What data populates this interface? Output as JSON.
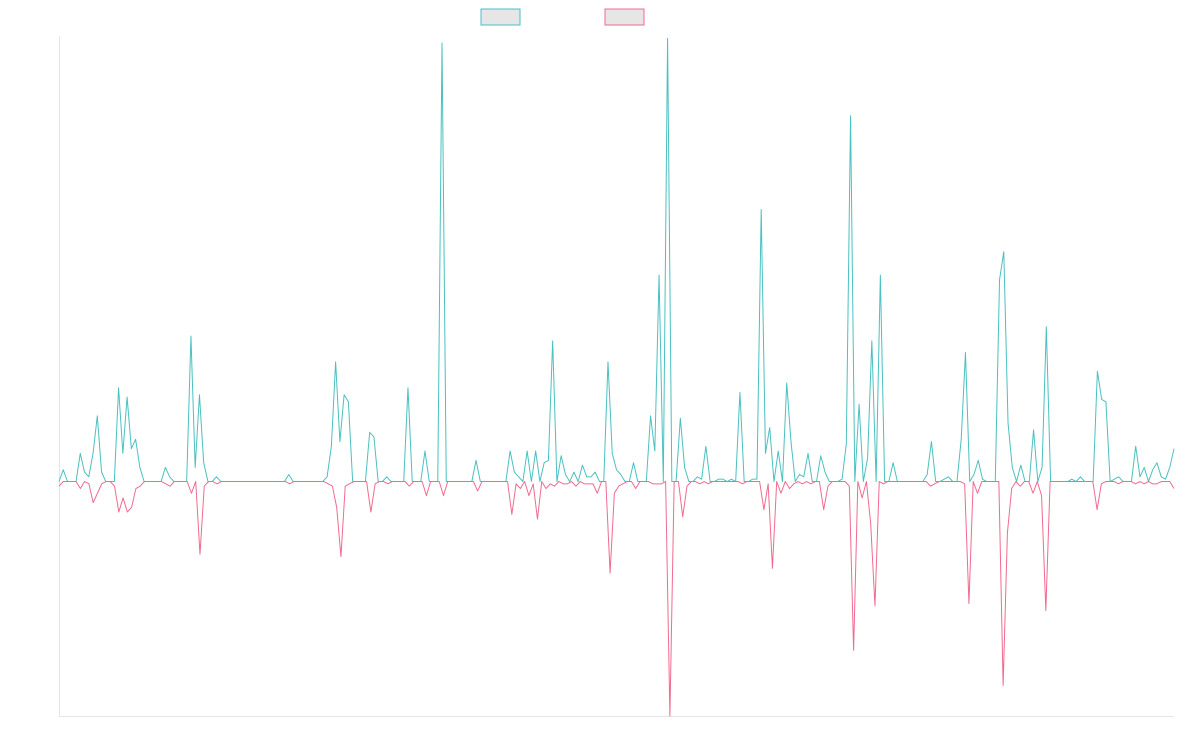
{
  "chart_data": {
    "type": "line",
    "title": "",
    "xlabel": "",
    "ylabel": "",
    "grid": false,
    "legend_position": "top-center",
    "ylim": [
      -1.0,
      1.9
    ],
    "series": [
      {
        "name": "",
        "color": "#4bc0c0",
        "fill": "#e6e6e6",
        "values": [
          0,
          0.05,
          0,
          0,
          0,
          0.12,
          0.04,
          0.02,
          0.12,
          0.28,
          0.04,
          0,
          0,
          0,
          0.4,
          0.12,
          0.36,
          0.14,
          0.18,
          0.06,
          0,
          0,
          0,
          0,
          0,
          0.06,
          0.02,
          0,
          0,
          0,
          0,
          0.62,
          0.06,
          0.37,
          0.08,
          0,
          0,
          0.02,
          0,
          0,
          0,
          0,
          0,
          0,
          0,
          0,
          0,
          0,
          0,
          0,
          0,
          0,
          0,
          0,
          0.03,
          0,
          0,
          0,
          0,
          0,
          0,
          0,
          0,
          0.02,
          0.15,
          0.51,
          0.17,
          0.37,
          0.34,
          0,
          0,
          0,
          0,
          0.21,
          0.19,
          0,
          0,
          0.02,
          0,
          0,
          0,
          0,
          0.4,
          0,
          0,
          0,
          0.13,
          0,
          0,
          0,
          1.87,
          0,
          0,
          0,
          0,
          0,
          0,
          0,
          0.09,
          0,
          0,
          0,
          0,
          0,
          0,
          0,
          0.13,
          0.04,
          0.02,
          0,
          0.13,
          0,
          0.13,
          0,
          0.08,
          0.09,
          0.6,
          0,
          0.11,
          0.03,
          0,
          0.04,
          0,
          0.07,
          0.02,
          0.02,
          0.04,
          0,
          0,
          0.51,
          0.12,
          0.05,
          0.03,
          0,
          0,
          0.08,
          0,
          0,
          0,
          0.28,
          0.13,
          0.88,
          0,
          1.89,
          0,
          0,
          0.27,
          0.06,
          0,
          0,
          0.02,
          0.01,
          0.15,
          0,
          0,
          0.01,
          0.01,
          0,
          0.01,
          0,
          0.38,
          0,
          0,
          0.01,
          0.01,
          1.16,
          0.12,
          0.23,
          0,
          0.13,
          0,
          0.42,
          0.17,
          0,
          0.03,
          0.02,
          0.12,
          0,
          0,
          0.11,
          0.04,
          0,
          0,
          0,
          0.01,
          0.16,
          1.56,
          0,
          0.33,
          0,
          0.1,
          0.6,
          0,
          0.88,
          0,
          0,
          0.08,
          0,
          0,
          0,
          0,
          0,
          0,
          0,
          0.03,
          0.17,
          0,
          0,
          0.01,
          0.02,
          0,
          0,
          0.18,
          0.55,
          0,
          0.03,
          0.09,
          0.01,
          0,
          0,
          0,
          0.86,
          0.98,
          0.25,
          0.06,
          0,
          0.07,
          0,
          0,
          0.22,
          0,
          0.06,
          0.66,
          0,
          0,
          0,
          0,
          0,
          0.01,
          0,
          0.02,
          0,
          0,
          0,
          0.47,
          0.35,
          0.34,
          0,
          0.01,
          0.02,
          0,
          0,
          0,
          0.15,
          0.02,
          0.06,
          0,
          0.05,
          0.08,
          0.02,
          0.01,
          0.06,
          0.14
        ]
      },
      {
        "name": "",
        "color": "#f06b8f",
        "fill": "#e6e6e6",
        "values": [
          -0.02,
          0,
          0,
          0,
          0,
          -0.03,
          0,
          -0.01,
          -0.09,
          -0.05,
          -0.01,
          0,
          0,
          -0.02,
          -0.13,
          -0.07,
          -0.13,
          -0.11,
          -0.03,
          -0.02,
          0,
          0,
          0,
          0,
          0,
          -0.01,
          -0.02,
          0,
          0,
          0,
          0,
          -0.05,
          0,
          -0.31,
          -0.02,
          0,
          0,
          -0.01,
          0,
          0,
          0,
          0,
          0,
          0,
          0,
          0,
          0,
          0,
          0,
          0,
          0,
          0,
          0,
          0,
          -0.01,
          0,
          0,
          0,
          0,
          0,
          0,
          0,
          0,
          -0.01,
          -0.02,
          -0.11,
          -0.32,
          -0.02,
          -0.01,
          0,
          0,
          0,
          0,
          -0.13,
          -0.01,
          0,
          0,
          -0.01,
          0,
          0,
          0,
          0,
          -0.02,
          0,
          0,
          0,
          -0.06,
          0,
          0,
          0,
          -0.06,
          0,
          0,
          0,
          0,
          0,
          0,
          0,
          -0.04,
          0,
          0,
          0,
          0,
          0,
          0,
          0,
          -0.14,
          -0.01,
          -0.03,
          0,
          -0.06,
          -0.01,
          -0.16,
          0,
          -0.03,
          -0.01,
          -0.02,
          0,
          -0.01,
          -0.01,
          0,
          -0.02,
          0,
          -0.01,
          -0.01,
          -0.01,
          -0.05,
          0,
          0,
          -0.39,
          -0.05,
          -0.02,
          -0.01,
          0,
          0,
          -0.03,
          0,
          0,
          0,
          -0.01,
          -0.01,
          -0.01,
          0,
          -1.0,
          0,
          0,
          -0.15,
          -0.02,
          0,
          0,
          -0.01,
          0,
          -0.01,
          0,
          0,
          0,
          0,
          0,
          0,
          0,
          -0.01,
          0,
          0,
          0,
          0,
          -0.12,
          -0.01,
          -0.37,
          0,
          -0.05,
          0,
          -0.03,
          -0.01,
          0,
          -0.01,
          0,
          -0.01,
          0,
          0,
          -0.12,
          -0.02,
          0,
          0,
          0,
          0,
          -0.02,
          -0.72,
          0,
          -0.07,
          0,
          -0.18,
          -0.53,
          0,
          -0.01,
          0,
          0,
          0,
          0,
          0,
          0,
          0,
          0,
          0,
          0,
          -0.02,
          -0.01,
          0,
          0,
          0,
          0,
          0,
          0,
          -0.01,
          -0.52,
          0,
          -0.05,
          0,
          0,
          0,
          0,
          0,
          -0.87,
          -0.22,
          -0.03,
          0,
          -0.02,
          0,
          0,
          -0.05,
          0,
          -0.06,
          -0.55,
          0,
          0,
          0,
          0,
          0,
          0,
          0,
          0,
          0,
          0,
          0,
          -0.12,
          -0.01,
          0,
          0,
          0,
          -0.01,
          0,
          0,
          0,
          -0.01,
          0,
          -0.01,
          0,
          -0.01,
          -0.01,
          0,
          0,
          0,
          -0.03
        ]
      }
    ]
  }
}
